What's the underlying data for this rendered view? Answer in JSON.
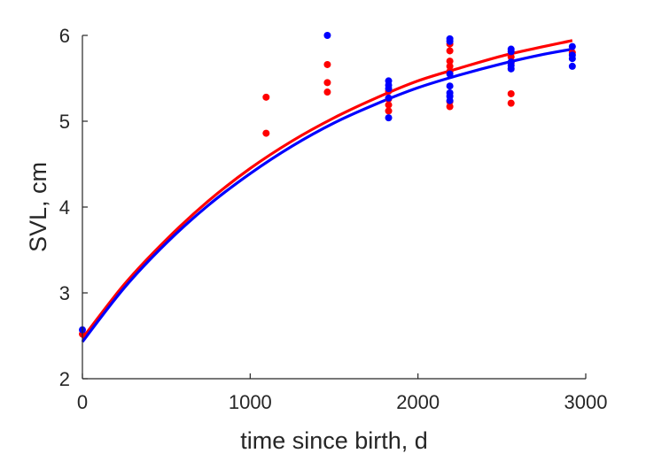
{
  "chart_data": {
    "type": "scatter",
    "title": "",
    "xlabel": "time since birth, d",
    "ylabel": "SVL, cm",
    "xlim": [
      0,
      3000
    ],
    "ylim": [
      2,
      6
    ],
    "xticks": [
      "0",
      "1000",
      "2000",
      "3000"
    ],
    "yticks": [
      "2",
      "3",
      "4",
      "5",
      "6"
    ],
    "grid": false,
    "legend": "none",
    "series": [
      {
        "color": "#ff0000",
        "points": [
          {
            "x": 0,
            "y": 2.52
          },
          {
            "x": 1095,
            "y": 5.28
          },
          {
            "x": 1095,
            "y": 4.86
          },
          {
            "x": 1460,
            "y": 5.66
          },
          {
            "x": 1460,
            "y": 5.45
          },
          {
            "x": 1460,
            "y": 5.34
          },
          {
            "x": 1825,
            "y": 5.35
          },
          {
            "x": 1825,
            "y": 5.26
          },
          {
            "x": 1825,
            "y": 5.19
          },
          {
            "x": 1825,
            "y": 5.12
          },
          {
            "x": 2190,
            "y": 5.9
          },
          {
            "x": 2190,
            "y": 5.82
          },
          {
            "x": 2190,
            "y": 5.7
          },
          {
            "x": 2190,
            "y": 5.64
          },
          {
            "x": 2190,
            "y": 5.58
          },
          {
            "x": 2190,
            "y": 5.23
          },
          {
            "x": 2190,
            "y": 5.17
          },
          {
            "x": 2555,
            "y": 5.75
          },
          {
            "x": 2555,
            "y": 5.68
          },
          {
            "x": 2555,
            "y": 5.32
          },
          {
            "x": 2555,
            "y": 5.21
          },
          {
            "x": 2920,
            "y": 5.8
          }
        ],
        "curve": {
          "x": [
            0,
            250,
            500,
            750,
            1000,
            1250,
            1500,
            1750,
            2000,
            2250,
            2500,
            2750,
            2920
          ],
          "y": [
            2.47,
            3.1,
            3.62,
            4.07,
            4.45,
            4.77,
            5.04,
            5.27,
            5.47,
            5.62,
            5.76,
            5.87,
            5.94
          ]
        }
      },
      {
        "color": "#0000ff",
        "points": [
          {
            "x": 0,
            "y": 2.57
          },
          {
            "x": 1460,
            "y": 6.0
          },
          {
            "x": 1825,
            "y": 5.47
          },
          {
            "x": 1825,
            "y": 5.42
          },
          {
            "x": 1825,
            "y": 5.38
          },
          {
            "x": 1825,
            "y": 5.27
          },
          {
            "x": 1825,
            "y": 5.04
          },
          {
            "x": 2190,
            "y": 5.96
          },
          {
            "x": 2190,
            "y": 5.93
          },
          {
            "x": 2190,
            "y": 5.55
          },
          {
            "x": 2190,
            "y": 5.41
          },
          {
            "x": 2190,
            "y": 5.33
          },
          {
            "x": 2190,
            "y": 5.29
          },
          {
            "x": 2190,
            "y": 5.24
          },
          {
            "x": 2555,
            "y": 5.84
          },
          {
            "x": 2555,
            "y": 5.81
          },
          {
            "x": 2555,
            "y": 5.69
          },
          {
            "x": 2555,
            "y": 5.65
          },
          {
            "x": 2555,
            "y": 5.61
          },
          {
            "x": 2920,
            "y": 5.87
          },
          {
            "x": 2920,
            "y": 5.77
          },
          {
            "x": 2920,
            "y": 5.73
          },
          {
            "x": 2920,
            "y": 5.64
          }
        ],
        "curve": {
          "x": [
            0,
            250,
            500,
            750,
            1000,
            1250,
            1500,
            1750,
            2000,
            2250,
            2500,
            2750,
            2920
          ],
          "y": [
            2.43,
            3.06,
            3.58,
            4.02,
            4.39,
            4.71,
            4.98,
            5.2,
            5.39,
            5.54,
            5.67,
            5.78,
            5.84
          ]
        }
      }
    ]
  }
}
